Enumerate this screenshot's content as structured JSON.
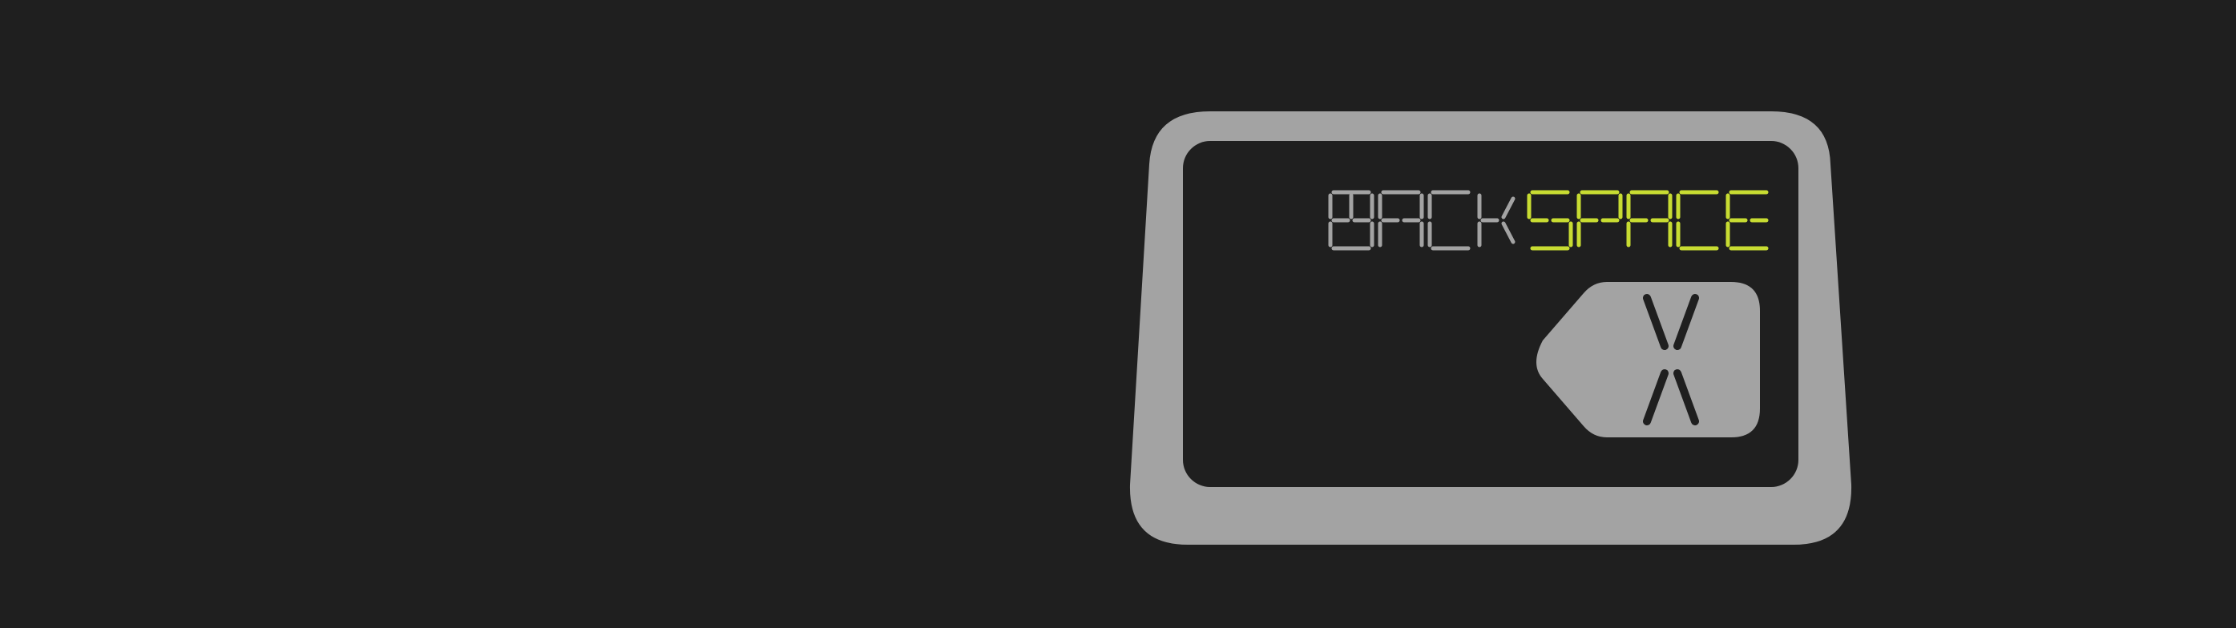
{
  "device": {
    "display_text": {
      "part1": "BACK",
      "part2": "SPACE"
    },
    "key": {
      "glyph": "X",
      "icon": "backspace-icon"
    },
    "colors": {
      "background": "#1f1f1f",
      "frame": "#a3a3a3",
      "screen": "#1f1f1f",
      "segments_dim": "#a3a3a3",
      "segments_lit": "#c8dc32",
      "key_fill": "#a3a3a3",
      "key_glyph": "#1f1f1f"
    }
  }
}
